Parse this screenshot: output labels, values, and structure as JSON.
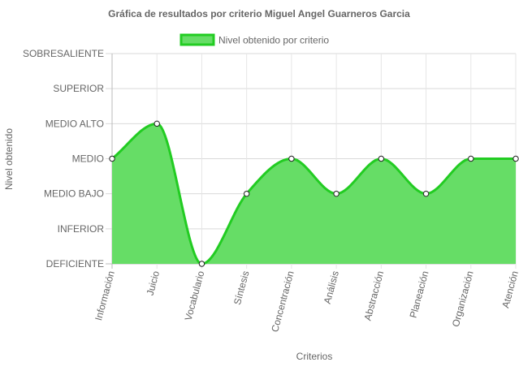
{
  "chart_data": {
    "type": "area",
    "title": "Gráfica de resultados por criterio  Miguel Angel Guarneros Garcia",
    "xlabel": "Criterios",
    "ylabel": "Nivel obtenido",
    "legend_position": "top-center",
    "grid": true,
    "levels": [
      "DEFICIENTE",
      "INFERIOR",
      "MEDIO BAJO",
      "MEDIO",
      "MEDIO ALTO",
      "SUPERIOR",
      "SOBRESALIENTE"
    ],
    "ylim": [
      0,
      6
    ],
    "categories": [
      "Información",
      "Juicio",
      "Vocabulario",
      "Síntesis",
      "Concentración",
      "Análisis",
      "Abstracción",
      "Planeación",
      "Organización",
      "Atención"
    ],
    "series": [
      {
        "name": "Nivel obtenido por criterio",
        "values": [
          3,
          4,
          0,
          2,
          3,
          2,
          3,
          2,
          3,
          3
        ],
        "fill_color": "#66dd66",
        "line_color": "#22cc22"
      }
    ]
  }
}
